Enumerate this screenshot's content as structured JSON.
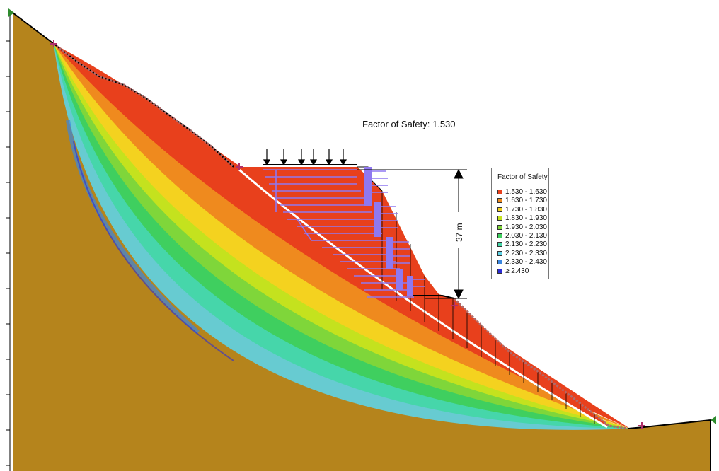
{
  "fos_label": "Factor of Safety: 1.530",
  "dimension_label": "37 m",
  "legend": {
    "title": "Factor of Safety",
    "items": [
      {
        "label": "1.530 - 1.630",
        "color": "#e8401c"
      },
      {
        "label": "1.630 - 1.730",
        "color": "#ef8a1e"
      },
      {
        "label": "1.730 - 1.830",
        "color": "#f4d21f"
      },
      {
        "label": "1.830 - 1.930",
        "color": "#c4e21e"
      },
      {
        "label": "1.930 - 2.030",
        "color": "#7fd63a"
      },
      {
        "label": "2.030 - 2.130",
        "color": "#3fcf5f"
      },
      {
        "label": "2.130 - 2.230",
        "color": "#45d6a8"
      },
      {
        "label": "2.230 - 2.330",
        "color": "#5ed3e6"
      },
      {
        "label": "2.330 - 2.430",
        "color": "#3a86e0"
      },
      {
        "label": "≥ 2.430",
        "color": "#2b2bd6"
      }
    ]
  },
  "colors": {
    "soil": "#b5841c",
    "critical_surface": "#ffffff",
    "slope_profile": "#b06a6a",
    "reinforcement": "#8f78f0",
    "load_arrow": "#000000"
  }
}
